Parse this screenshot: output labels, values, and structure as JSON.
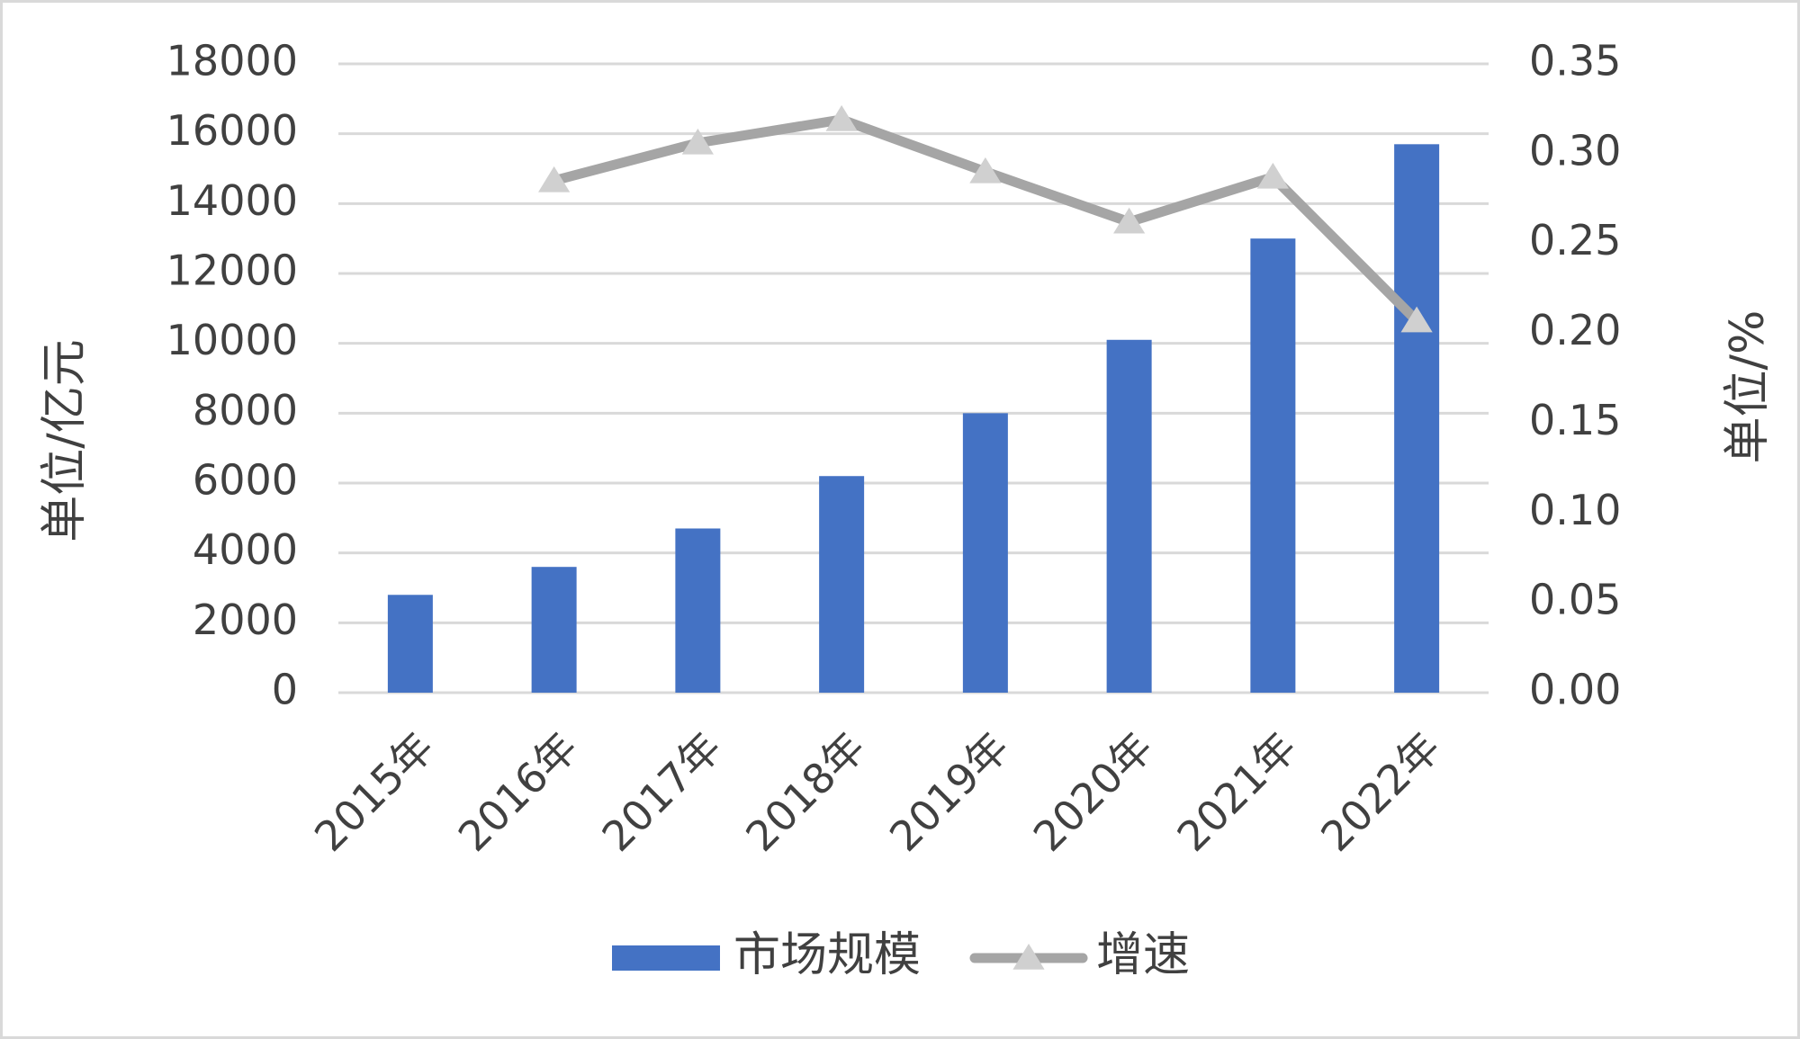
{
  "chart_data": {
    "type": "bar-line",
    "categories": [
      "2015年",
      "2016年",
      "2017年",
      "2018年",
      "2019年",
      "2020年",
      "2021年",
      "2022年"
    ],
    "series": [
      {
        "name": "市场规模",
        "type": "bar",
        "color": "#4472c4",
        "values": [
          2800,
          3600,
          4700,
          6200,
          8000,
          10100,
          13000,
          15700
        ]
      },
      {
        "name": "增速",
        "type": "line",
        "axis": "y2",
        "color": "#a5a5a5",
        "marker_color": "#d0d0d0",
        "values": [
          null,
          0.285,
          0.306,
          0.319,
          0.29,
          0.262,
          0.287,
          0.207
        ]
      }
    ],
    "ylabel": "单位/亿元",
    "y2label": "单位/%",
    "ylim": [
      0,
      18000
    ],
    "yticks": [
      0,
      2000,
      4000,
      6000,
      8000,
      10000,
      12000,
      14000,
      16000,
      18000
    ],
    "y2lim": [
      0,
      0.35
    ],
    "y2ticks": [
      {
        "value": 0,
        "label": "0.00"
      },
      {
        "value": 0.05,
        "label": "0.05"
      },
      {
        "value": 0.1,
        "label": "0.10"
      },
      {
        "value": 0.15,
        "label": "0.15"
      },
      {
        "value": 0.2,
        "label": "0.20"
      },
      {
        "value": 0.25,
        "label": "0.25"
      },
      {
        "value": 0.3,
        "label": "0.30"
      },
      {
        "value": 0.35,
        "label": "0.35"
      }
    ],
    "grid": true,
    "legend": "bottom"
  }
}
